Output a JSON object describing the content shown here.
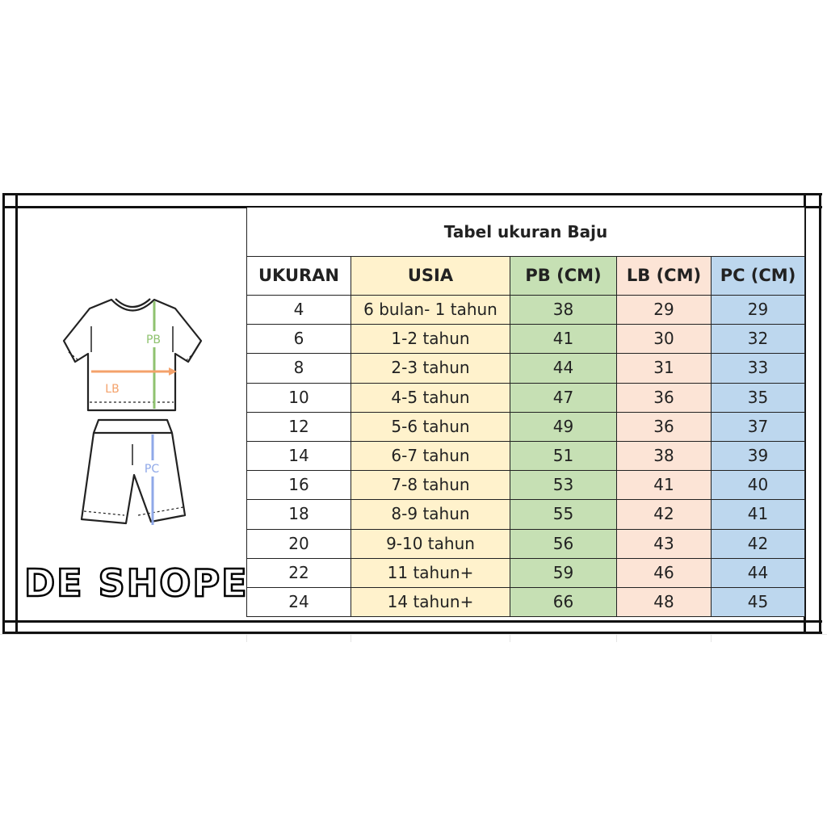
{
  "title": "Tabel ukuran Baju",
  "headers": [
    "UKURAN",
    "USIA",
    "PB (CM)",
    "LB (CM)",
    "PC (CM)"
  ],
  "rows": [
    [
      "4",
      "6 bulan- 1 tahun",
      "38",
      "29",
      "29"
    ],
    [
      "6",
      "1-2 tahun",
      "41",
      "30",
      "32"
    ],
    [
      "8",
      "2-3 tahun",
      "44",
      "31",
      "33"
    ],
    [
      "10",
      "4-5 tahun",
      "47",
      "36",
      "35"
    ],
    [
      "12",
      "5-6 tahun",
      "49",
      "36",
      "37"
    ],
    [
      "14",
      "6-7 tahun",
      "51",
      "38",
      "39"
    ],
    [
      "16",
      "7-8 tahun",
      "53",
      "41",
      "40"
    ],
    [
      "18",
      "8-9 tahun",
      "55",
      "42",
      "41"
    ],
    [
      "20",
      "9-10 tahun",
      "56",
      "43",
      "42"
    ],
    [
      "22",
      "11 tahun+",
      "59",
      "46",
      "44"
    ],
    [
      "24",
      "14 tahun+",
      "66",
      "48",
      "45"
    ]
  ],
  "illustration": {
    "pb_label": "PB",
    "lb_label": "LB",
    "pc_label": "PC"
  },
  "logo": "DE SHOPE",
  "colors": {
    "usia": "#fff2cc",
    "pb": "#c6e0b4",
    "lb": "#fce4d6",
    "pc": "#bdd7ee",
    "pb_arrow": "#8fc26f",
    "lb_arrow": "#f4a26b",
    "pc_arrow": "#8fa8e8"
  }
}
